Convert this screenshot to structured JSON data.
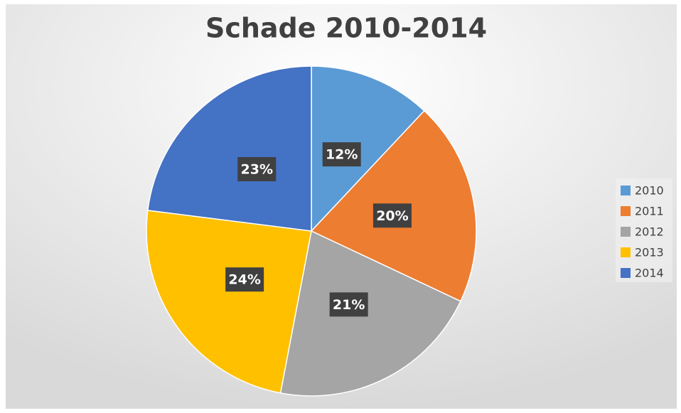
{
  "chart_data": {
    "type": "pie",
    "title": "Schade 2010-2014",
    "categories": [
      "2010",
      "2011",
      "2012",
      "2013",
      "2014"
    ],
    "values": [
      12,
      20,
      21,
      24,
      23
    ],
    "value_labels": [
      "12%",
      "20%",
      "21%",
      "24%",
      "23%"
    ],
    "colors": [
      "#5b9bd5",
      "#ed7d31",
      "#a5a5a5",
      "#ffc000",
      "#4472c4"
    ],
    "legend": "right"
  }
}
